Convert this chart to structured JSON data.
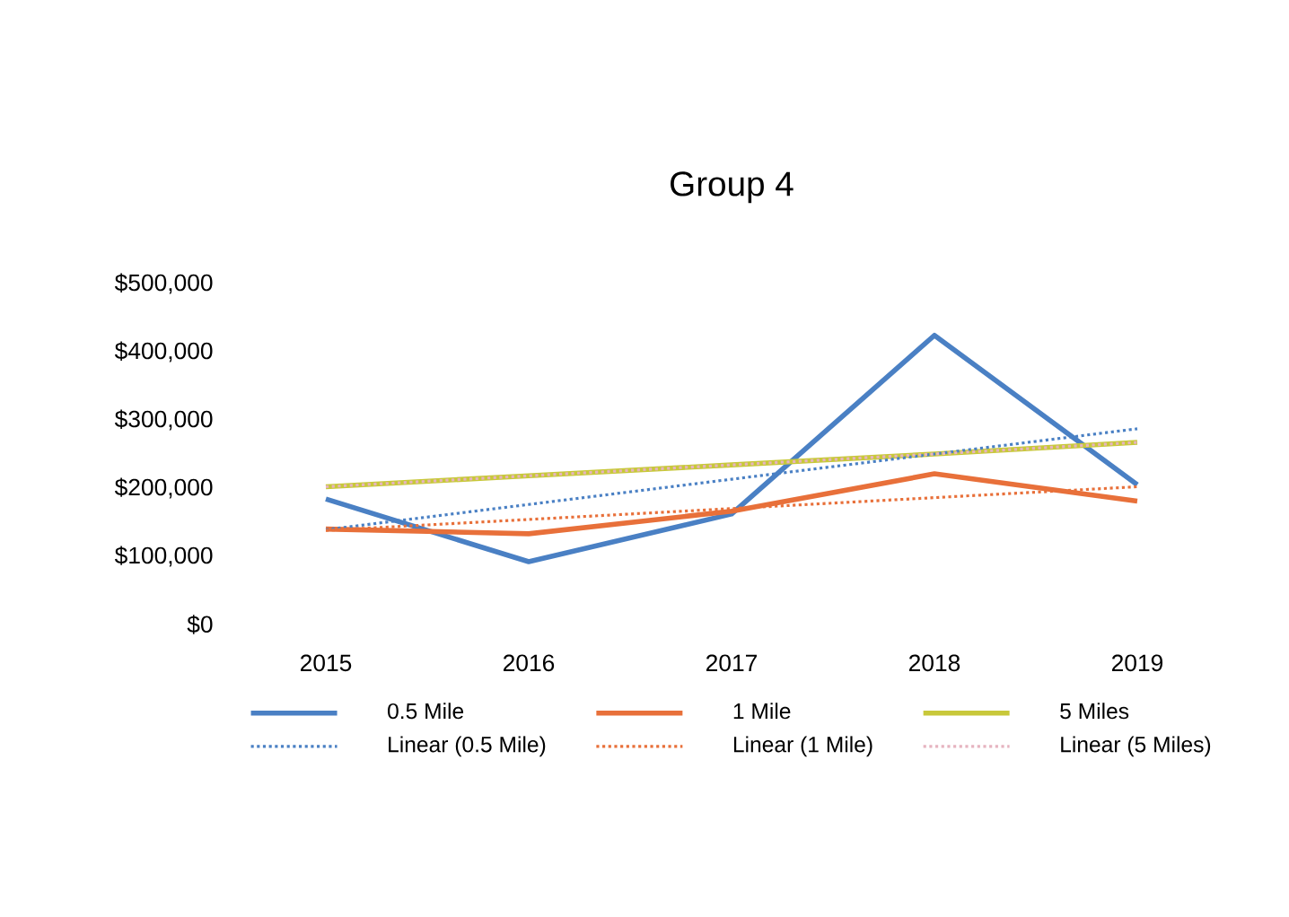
{
  "chart_data": {
    "type": "line",
    "title": "Group 4",
    "categories": [
      "2015",
      "2016",
      "2017",
      "2018",
      "2019"
    ],
    "series": [
      {
        "name": "0.5 Mile",
        "color": "#4a80c4",
        "line_style": "solid",
        "values": [
          184000,
          92000,
          162000,
          424000,
          205000
        ]
      },
      {
        "name": "1 Mile",
        "color": "#e8703a",
        "line_style": "solid",
        "values": [
          140000,
          133000,
          166000,
          221000,
          181000
        ]
      },
      {
        "name": "5 Miles",
        "color": "#c8c83a",
        "line_style": "solid",
        "values": [
          202000,
          218000,
          234000,
          250000,
          267000
        ]
      },
      {
        "name": "Linear (0.5 Mile)",
        "color": "#4a80c4",
        "line_style": "dotted",
        "values": [
          139000,
          176000,
          213000,
          250000,
          287000
        ]
      },
      {
        "name": "Linear (1 Mile)",
        "color": "#e8703a",
        "line_style": "dotted",
        "values": [
          138000,
          154000,
          170000,
          186000,
          202000
        ]
      },
      {
        "name": "Linear (5 Miles)",
        "color": "#e6b4c0",
        "line_style": "dotted",
        "values": [
          202000,
          218000,
          234000,
          250000,
          267000
        ]
      }
    ],
    "ylim": [
      0,
      500000
    ],
    "yticks": [
      {
        "value": 0,
        "label": "$0"
      },
      {
        "value": 100000,
        "label": "$100,000"
      },
      {
        "value": 200000,
        "label": "$200,000"
      },
      {
        "value": 300000,
        "label": "$300,000"
      },
      {
        "value": 400000,
        "label": "$400,000"
      },
      {
        "value": 500000,
        "label": "$500,000"
      }
    ],
    "grid": false,
    "legend": "bottom",
    "marker": "none"
  }
}
